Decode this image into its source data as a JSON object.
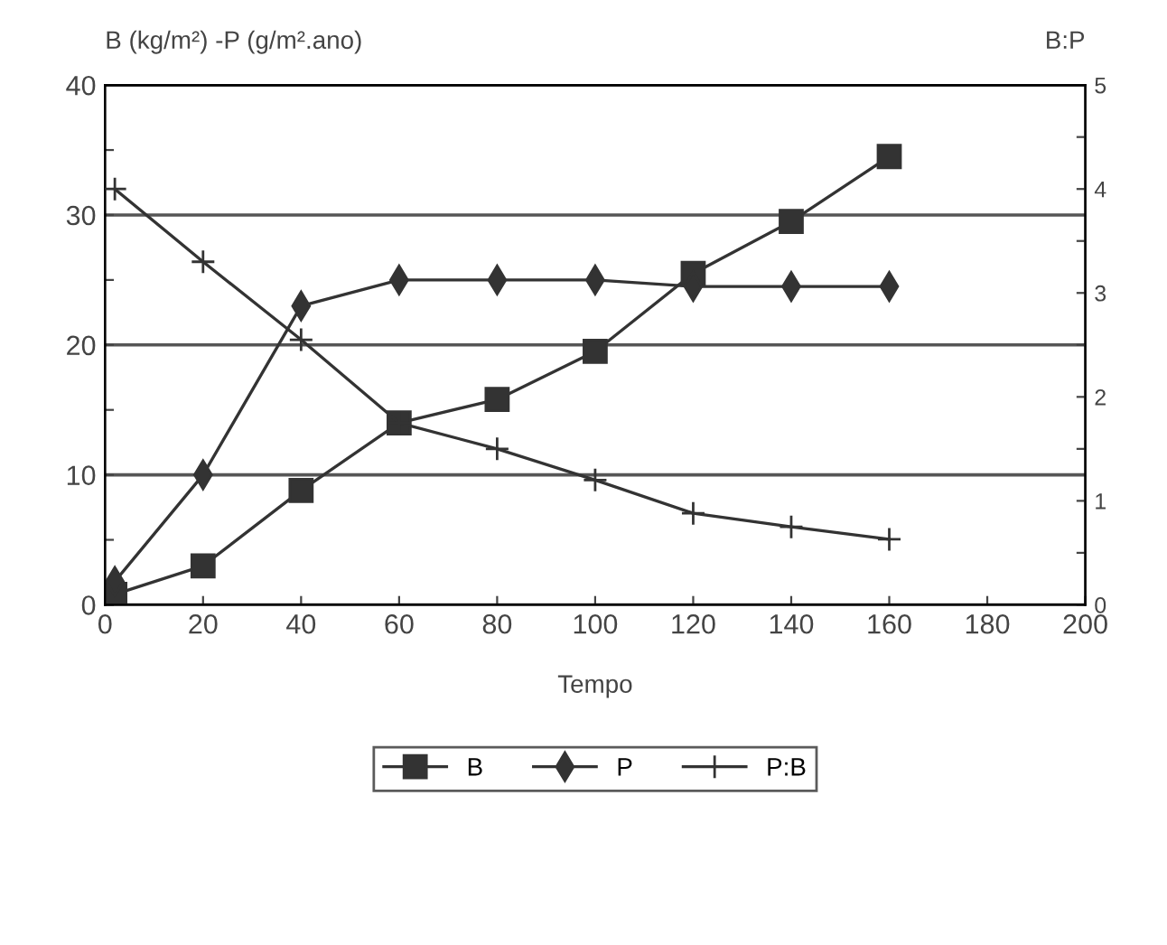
{
  "chart_data": {
    "type": "line",
    "ylabel": "B (kg/m²) -P (g/m².ano)",
    "xlabel": "Tempo",
    "annotations": [
      "B:P"
    ],
    "x": [
      2,
      20,
      40,
      60,
      80,
      100,
      120,
      140,
      160
    ],
    "series": [
      {
        "name": "B",
        "color": "#333333",
        "marker": "square",
        "values": [
          0.8,
          3,
          8.8,
          14,
          15.8,
          19.5,
          25.5,
          29.5,
          34.5
        ]
      },
      {
        "name": "P",
        "color": "#333333",
        "marker": "diamond",
        "values": [
          1.8,
          10,
          23,
          25,
          25,
          25,
          24.5,
          24.5,
          24.5
        ]
      },
      {
        "name": "P:B",
        "color": "#333333",
        "marker": "cross",
        "axis": "y2",
        "values": [
          4.0,
          3.3,
          2.55,
          1.75,
          1.5,
          1.2,
          0.88,
          0.75,
          0.63
        ]
      }
    ],
    "xlim": [
      0,
      200
    ],
    "xticks": [
      0,
      20,
      40,
      60,
      80,
      100,
      120,
      140,
      160,
      180,
      200
    ],
    "ylim": [
      0,
      40
    ],
    "yticks": [
      0,
      {
        "value": 5,
        "label": null
      },
      10,
      {
        "value": 15,
        "label": null
      },
      20,
      {
        "value": 25,
        "label": null
      },
      30,
      {
        "value": 35,
        "label": null
      },
      40
    ],
    "y2lim": [
      0,
      5
    ],
    "y2ticks": [
      0,
      {
        "value": 0.5,
        "label": null
      },
      1,
      {
        "value": 1.5,
        "label": null
      },
      2,
      {
        "value": 2.5,
        "label": null
      },
      3,
      {
        "value": 3.5,
        "label": null
      },
      4,
      {
        "value": 4.5,
        "label": null
      },
      5
    ],
    "grid": "y",
    "legend": "bottom"
  }
}
